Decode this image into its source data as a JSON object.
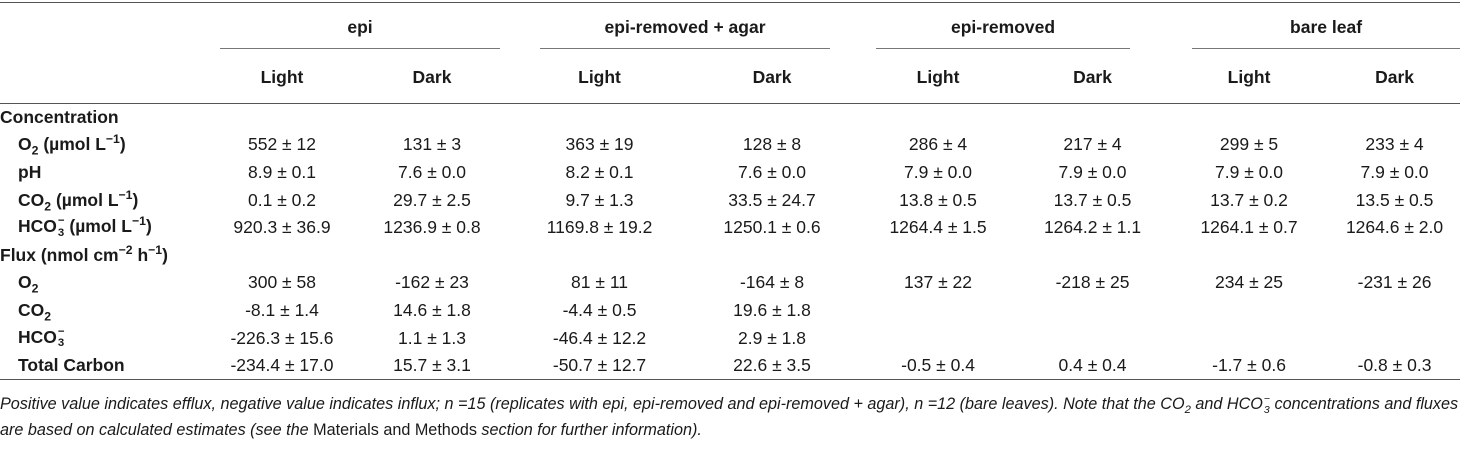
{
  "table": {
    "groups": [
      "epi",
      "epi-removed + agar",
      "epi-removed",
      "bare leaf"
    ],
    "subheaders": [
      "Light",
      "Dark",
      "Light",
      "Dark",
      "Light",
      "Dark",
      "Light",
      "Dark"
    ],
    "sections": [
      {
        "title": [
          {
            "text": "Concentration"
          }
        ],
        "rows": [
          {
            "label": [
              {
                "text": "O"
              },
              {
                "sub": "2"
              },
              {
                "text": " (µmol L"
              },
              {
                "sup": "−1"
              },
              {
                "text": ")"
              }
            ],
            "cells": [
              "552 ± 12",
              "131 ± 3",
              "363 ± 19",
              "128 ± 8",
              "286 ± 4",
              "217 ± 4",
              "299 ± 5",
              "233 ± 4"
            ]
          },
          {
            "label": [
              {
                "text": "pH"
              }
            ],
            "cells": [
              "8.9 ± 0.1",
              "7.6 ± 0.0",
              "8.2 ± 0.1",
              "7.6 ± 0.0",
              "7.9 ± 0.0",
              "7.9 ± 0.0",
              "7.9 ± 0.0",
              "7.9 ± 0.0"
            ]
          },
          {
            "label": [
              {
                "text": "CO"
              },
              {
                "sub": "2"
              },
              {
                "text": " (µmol L"
              },
              {
                "sup": "−1"
              },
              {
                "text": ")"
              }
            ],
            "cells": [
              "0.1 ± 0.2",
              "29.7 ± 2.5",
              "9.7 ± 1.3",
              "33.5 ± 24.7",
              "13.8 ± 0.5",
              "13.7 ± 0.5",
              "13.7 ± 0.2",
              "13.5 ± 0.5"
            ]
          },
          {
            "label": [
              {
                "text": "HCO"
              },
              {
                "sub": "3",
                "sup": "−"
              },
              {
                "text": " (µmol L"
              },
              {
                "sup": "−1"
              },
              {
                "text": ")"
              }
            ],
            "cells": [
              "920.3 ± 36.9",
              "1236.9 ± 0.8",
              "1169.8 ± 19.2",
              "1250.1 ± 0.6",
              "1264.4 ± 1.5",
              "1264.2 ± 1.1",
              "1264.1 ± 0.7",
              "1264.6 ± 2.0"
            ]
          }
        ]
      },
      {
        "title": [
          {
            "text": "Flux (nmol cm"
          },
          {
            "sup": "−2"
          },
          {
            "text": " h"
          },
          {
            "sup": "−1"
          },
          {
            "text": ")"
          }
        ],
        "rows": [
          {
            "label": [
              {
                "text": "O"
              },
              {
                "sub": "2"
              }
            ],
            "cells": [
              "300 ± 58",
              "-162 ± 23",
              "81 ± 11",
              "-164 ± 8",
              "137 ± 22",
              "-218 ± 25",
              "234 ± 25",
              "-231 ± 26"
            ]
          },
          {
            "label": [
              {
                "text": "CO"
              },
              {
                "sub": "2"
              }
            ],
            "cells": [
              "-8.1 ± 1.4",
              "14.6 ± 1.8",
              "-4.4 ± 0.5",
              "19.6 ± 1.8",
              null,
              null,
              null,
              null
            ]
          },
          {
            "label": [
              {
                "text": "HCO"
              },
              {
                "sub": "3",
                "sup": "−"
              }
            ],
            "cells": [
              "-226.3 ± 15.6",
              "1.1 ± 1.3",
              "-46.4 ± 12.2",
              "2.9 ± 1.8",
              null,
              null,
              null,
              null
            ]
          },
          {
            "label": [
              {
                "text": "Total Carbon"
              }
            ],
            "cells": [
              "-234.4 ± 17.0",
              "15.7 ± 3.1",
              "-50.7 ± 12.7",
              "22.6 ± 3.5",
              "-0.5 ± 0.4",
              "0.4 ± 0.4",
              "-1.7 ± 0.6",
              "-0.8 ± 0.3"
            ]
          }
        ]
      }
    ],
    "footnote": [
      {
        "text": "Positive value indicates efflux, negative value indicates influx; n =15 (replicates with epi, epi-removed and epi-removed + agar), n =12 (bare leaves). Note that the CO"
      },
      {
        "sub": "2"
      },
      {
        "text": " and HCO"
      },
      {
        "sub": "3",
        "sup": "−"
      },
      {
        "text": " concentrations and fluxes are based on calculated estimates (see the "
      },
      {
        "text": "Materials and Methods",
        "style": "roman"
      },
      {
        "text": " section for further information)."
      }
    ]
  }
}
